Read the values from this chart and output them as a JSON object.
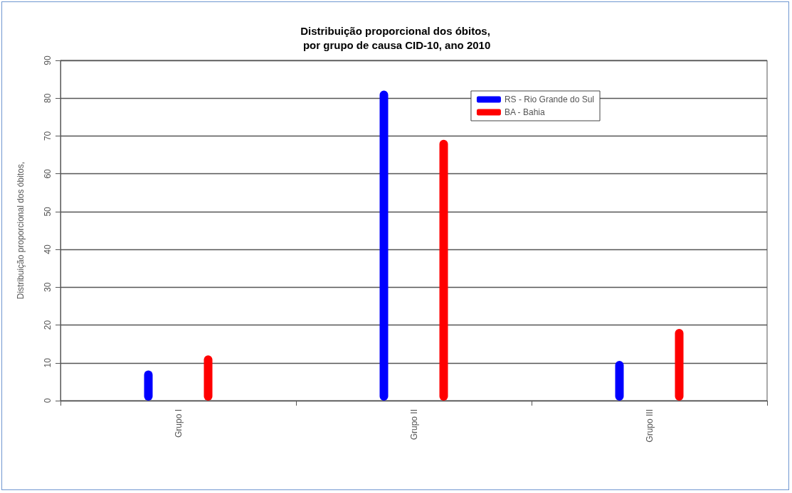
{
  "chart_data": {
    "type": "bar",
    "title": "Distribuição proporcional dos óbitos,\n por grupo de causa CID-10, ano 2010",
    "ylabel": "Distribuição proporcional dos óbitos,",
    "categories": [
      "Grupo I",
      "Grupo II",
      "Grupo III"
    ],
    "series": [
      {
        "name": "RS - Rio Grande do Sul",
        "color": "#0000ff",
        "values": [
          8,
          82,
          10.5
        ]
      },
      {
        "name": "BA - Bahia",
        "color": "#ff0000",
        "values": [
          12,
          69,
          19
        ]
      }
    ],
    "ylim": [
      0,
      90
    ],
    "yticks": [
      0,
      10,
      20,
      30,
      40,
      50,
      60,
      70,
      80,
      90
    ],
    "grid": "y",
    "legend": "top right"
  }
}
